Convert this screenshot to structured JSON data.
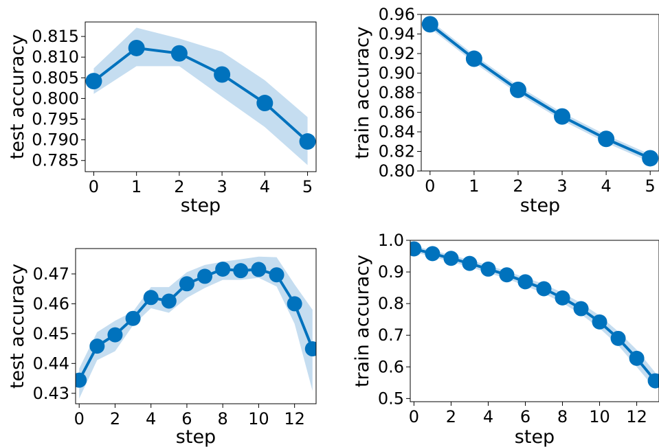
{
  "colors": {
    "line": "#0072bd",
    "band": "#c5ddf0",
    "axes": "#000000",
    "background": "#ffffff"
  },
  "chart_data": [
    {
      "type": "line",
      "xlabel": "step",
      "ylabel": "test accuracy",
      "xlim": [
        -0.2,
        5.2
      ],
      "ylim": [
        0.7823,
        0.8185
      ],
      "xticks": [
        0,
        1,
        2,
        3,
        4,
        5
      ],
      "yticks": [
        0.785,
        0.79,
        0.795,
        0.8,
        0.805,
        0.81,
        0.815
      ],
      "ytick_labels": [
        "0.785",
        "0.790",
        "0.795",
        "0.800",
        "0.805",
        "0.810",
        "0.815"
      ],
      "x": [
        0,
        1,
        2,
        3,
        4,
        5
      ],
      "y": [
        0.8042,
        0.8122,
        0.8109,
        0.8058,
        0.7989,
        0.7896
      ],
      "y_lower": [
        0.8011,
        0.8078,
        0.8078,
        0.8004,
        0.7931,
        0.7839
      ],
      "y_upper": [
        0.8073,
        0.8171,
        0.8145,
        0.8113,
        0.8044,
        0.7955
      ]
    },
    {
      "type": "line",
      "xlabel": "step",
      "ylabel": "train accuracy",
      "xlim": [
        -0.2,
        5.2
      ],
      "ylim": [
        0.8,
        0.96
      ],
      "xticks": [
        0,
        1,
        2,
        3,
        4,
        5
      ],
      "yticks": [
        0.8,
        0.82,
        0.84,
        0.86,
        0.88,
        0.9,
        0.92,
        0.94,
        0.96
      ],
      "ytick_labels": [
        "0.80",
        "0.82",
        "0.84",
        "0.86",
        "0.88",
        "0.90",
        "0.92",
        "0.94",
        "0.96"
      ],
      "x": [
        0,
        1,
        2,
        3,
        4,
        5
      ],
      "y": [
        0.9499,
        0.9147,
        0.8829,
        0.8557,
        0.8328,
        0.813
      ],
      "y_lower": [
        0.9459,
        0.9107,
        0.8789,
        0.8517,
        0.8288,
        0.809
      ],
      "y_upper": [
        0.9539,
        0.9187,
        0.8869,
        0.8597,
        0.8368,
        0.817
      ]
    },
    {
      "type": "line",
      "xlabel": "step",
      "ylabel": "test accuracy",
      "xlim": [
        -0.2,
        13.2
      ],
      "ylim": [
        0.4265,
        0.4785
      ],
      "xticks": [
        0,
        2,
        4,
        6,
        8,
        10,
        12
      ],
      "yticks": [
        0.43,
        0.44,
        0.45,
        0.46,
        0.47
      ],
      "ytick_labels": [
        "0.43",
        "0.44",
        "0.45",
        "0.46",
        "0.47"
      ],
      "x": [
        0,
        1,
        2,
        3,
        4,
        5,
        6,
        7,
        8,
        9,
        10,
        11,
        12,
        13
      ],
      "y": [
        0.4344,
        0.4458,
        0.4496,
        0.4551,
        0.4621,
        0.4609,
        0.4667,
        0.4692,
        0.4716,
        0.4711,
        0.4715,
        0.4697,
        0.46,
        0.4449
      ],
      "y_lower": [
        0.4282,
        0.4411,
        0.4441,
        0.4528,
        0.4585,
        0.457,
        0.462,
        0.4653,
        0.468,
        0.468,
        0.4687,
        0.4658,
        0.4533,
        0.4308
      ],
      "y_upper": [
        0.4383,
        0.4505,
        0.4543,
        0.4574,
        0.4656,
        0.4656,
        0.4706,
        0.473,
        0.4741,
        0.4749,
        0.4758,
        0.4756,
        0.4665,
        0.458
      ]
    },
    {
      "type": "line",
      "xlabel": "step",
      "ylabel": "train accuracy",
      "xlim": [
        -0.2,
        13.2
      ],
      "ylim": [
        0.49,
        1.0
      ],
      "xticks": [
        0,
        2,
        4,
        6,
        8,
        10,
        12
      ],
      "yticks": [
        0.5,
        0.6,
        0.7,
        0.8,
        0.9,
        1.0
      ],
      "ytick_labels": [
        "0.5",
        "0.6",
        "0.7",
        "0.8",
        "0.9",
        "1.0"
      ],
      "x": [
        0,
        1,
        2,
        3,
        4,
        5,
        6,
        7,
        8,
        9,
        10,
        11,
        12,
        13
      ],
      "y": [
        0.973,
        0.958,
        0.943,
        0.927,
        0.909,
        0.891,
        0.869,
        0.847,
        0.818,
        0.784,
        0.742,
        0.69,
        0.627,
        0.556
      ],
      "y_lower": [
        0.963,
        0.948,
        0.932,
        0.916,
        0.897,
        0.879,
        0.856,
        0.832,
        0.802,
        0.766,
        0.722,
        0.668,
        0.6,
        0.53
      ],
      "y_upper": [
        0.983,
        0.968,
        0.954,
        0.938,
        0.921,
        0.903,
        0.882,
        0.862,
        0.834,
        0.802,
        0.762,
        0.712,
        0.654,
        0.582
      ]
    }
  ]
}
